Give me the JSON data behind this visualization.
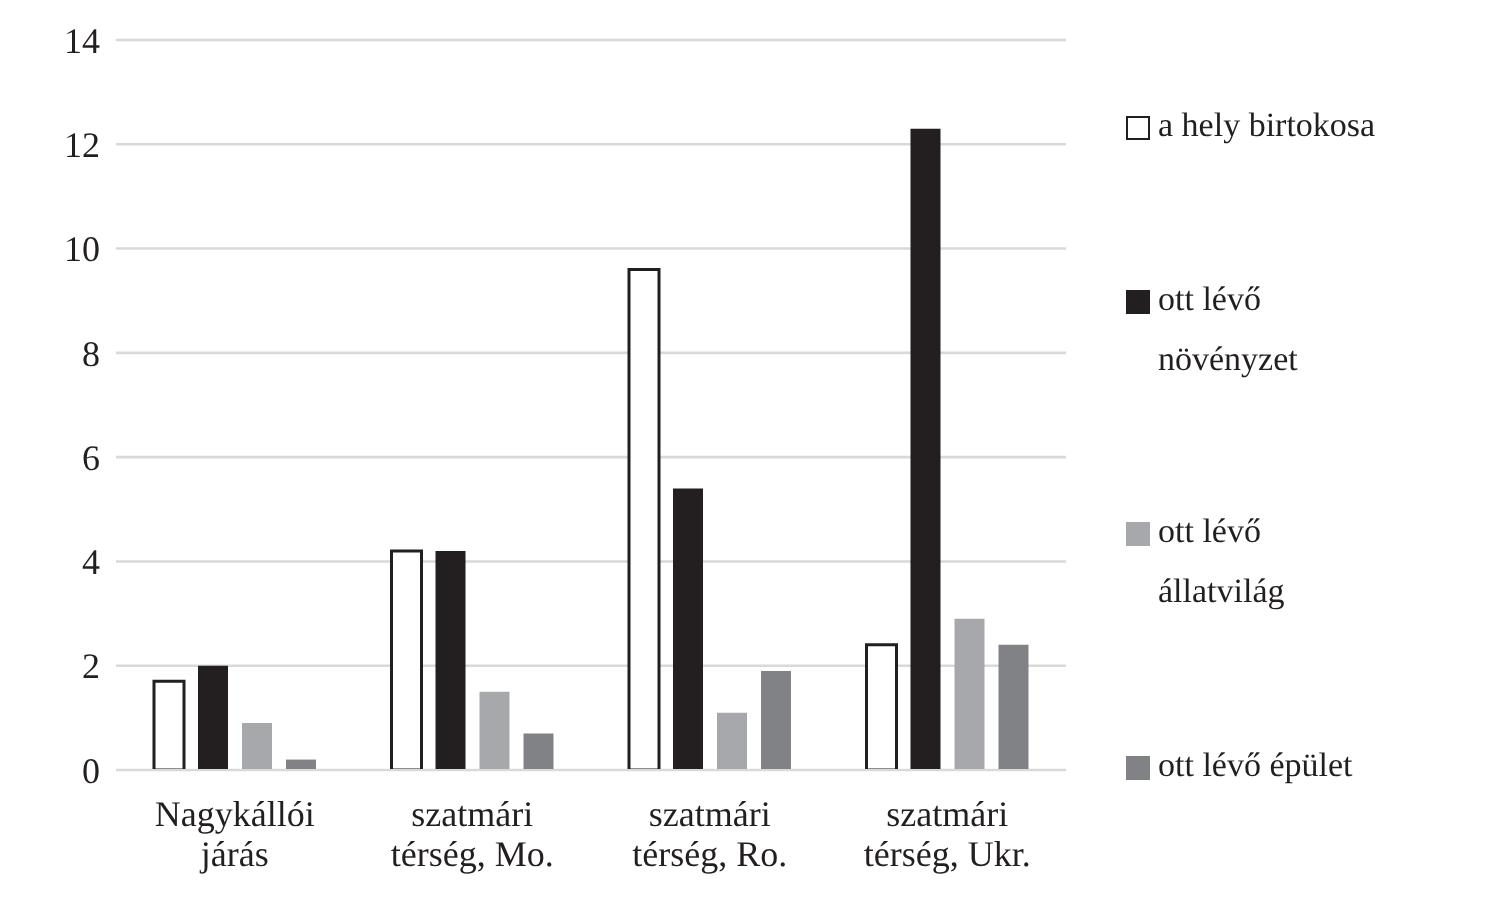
{
  "chart_data": {
    "type": "bar",
    "categories": [
      "Nagykállói járás",
      "szatmári térség, Mo.",
      "szatmári térség, Ro.",
      "szatmári térség, Ukr."
    ],
    "series": [
      {
        "name": "a hely birtokosa",
        "color": "#ffffff",
        "values": [
          1.7,
          4.2,
          9.6,
          2.4
        ]
      },
      {
        "name": "ott lévő növényzet",
        "color": "#231f20",
        "values": [
          2.0,
          4.2,
          5.4,
          12.3
        ]
      },
      {
        "name": "ott lévő állatvilág",
        "color": "#a7a8ab",
        "values": [
          0.9,
          1.5,
          1.1,
          2.9
        ]
      },
      {
        "name": "ott lévő épület",
        "color": "#808285",
        "values": [
          0.2,
          0.7,
          1.9,
          2.4
        ]
      }
    ],
    "ylim": [
      0,
      14
    ],
    "yticks": [
      0,
      2,
      4,
      6,
      8,
      10,
      12,
      14
    ],
    "grid": "y",
    "legend": "right"
  }
}
